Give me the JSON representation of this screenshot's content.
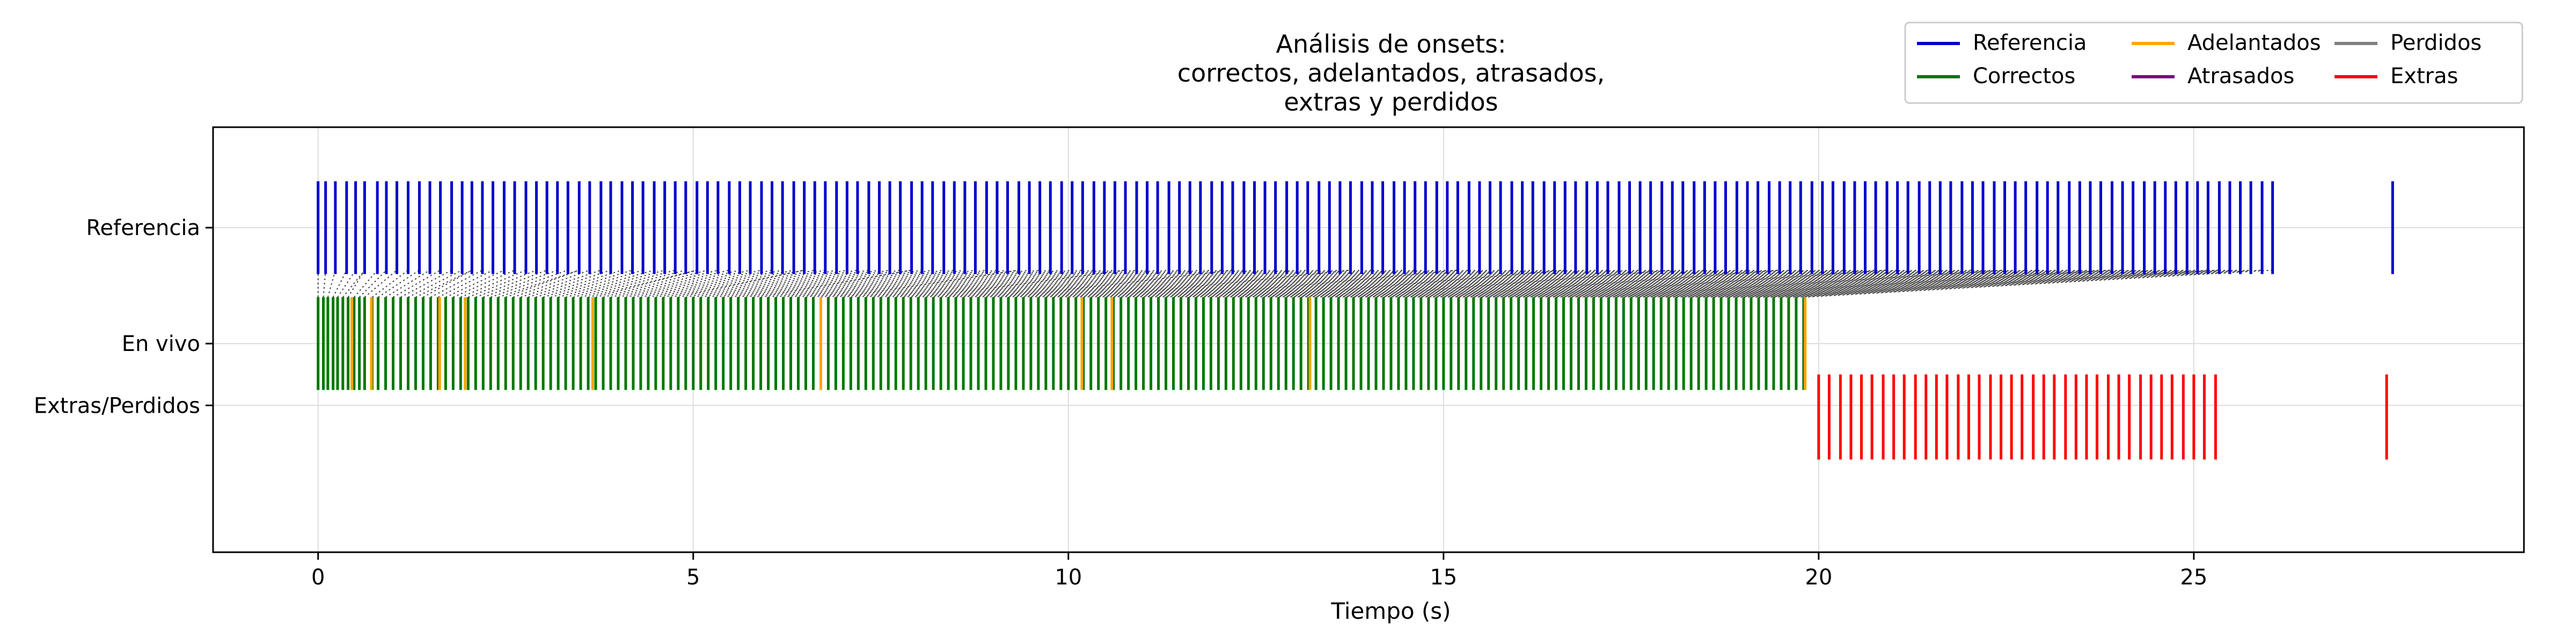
{
  "chart_data": {
    "type": "event-plot",
    "title_lines": [
      "Análisis de onsets:",
      "correctos, adelantados, atrasados,",
      "extras y perdidos"
    ],
    "xlabel": "Tiempo (s)",
    "xlim": [
      -1.4,
      29.4
    ],
    "ylim": [
      -1.5,
      4.0
    ],
    "x_ticks": [
      0,
      5,
      10,
      15,
      20,
      25
    ],
    "y_ticks": [
      {
        "value": 2.7,
        "label": "Referencia"
      },
      {
        "value": 1.2,
        "label": "En vivo"
      },
      {
        "value": 0.4,
        "label": "Extras/Perdidos"
      }
    ],
    "grid": true,
    "legend": {
      "placement": "top-right",
      "entries": [
        {
          "label": "Referencia",
          "color": "#0000cc"
        },
        {
          "label": "Correctos",
          "color": "#007700"
        },
        {
          "label": "Adelantados",
          "color": "#ffa500"
        },
        {
          "label": "Atrasados",
          "color": "#800080"
        },
        {
          "label": "Perdidos",
          "color": "#808080"
        },
        {
          "label": "Extras",
          "color": "#ff0000"
        }
      ]
    },
    "rows": {
      "reference": {
        "y_range": [
          2.1,
          3.3
        ],
        "color": "#0000cc"
      },
      "live": {
        "y_range": [
          0.6,
          1.8
        ]
      },
      "extras": {
        "y_range": [
          -0.3,
          0.8
        ],
        "color": "#ff0000"
      }
    },
    "reference_onsets": [
      0.0,
      0.1,
      0.23,
      0.38,
      0.5,
      0.62,
      0.79,
      0.91,
      1.05,
      1.2,
      1.35,
      1.49,
      1.63,
      1.78,
      1.92,
      2.05,
      2.19,
      2.33,
      2.48,
      2.62,
      2.77,
      2.91,
      3.05,
      3.19,
      3.33,
      3.48,
      3.62,
      3.77,
      3.9,
      4.05,
      4.19,
      4.33,
      4.48,
      4.62,
      4.76,
      4.9,
      5.05,
      5.19,
      5.33,
      5.48,
      5.62,
      5.76,
      5.91,
      6.05,
      6.19,
      6.34,
      6.48,
      6.62,
      6.76,
      6.91,
      7.05,
      7.19,
      7.34,
      7.48,
      7.62,
      7.76,
      7.91,
      8.05,
      8.19,
      8.34,
      8.48,
      8.62,
      8.76,
      8.91,
      9.05,
      9.19,
      9.34,
      9.48,
      9.62,
      9.76,
      9.91,
      10.05,
      10.19,
      10.34,
      10.48,
      10.62,
      10.76,
      10.91,
      11.05,
      11.19,
      11.34,
      11.48,
      11.62,
      11.76,
      11.91,
      12.05,
      12.19,
      12.34,
      12.48,
      12.62,
      12.76,
      12.91,
      13.05,
      13.19,
      13.34,
      13.48,
      13.62,
      13.76,
      13.91,
      14.05,
      14.19,
      14.34,
      14.48,
      14.62,
      14.76,
      14.91,
      15.05,
      15.19,
      15.34,
      15.48,
      15.62,
      15.76,
      15.91,
      16.05,
      16.19,
      16.34,
      16.48,
      16.62,
      16.76,
      16.91,
      17.05,
      17.19,
      17.34,
      17.48,
      17.62,
      17.76,
      17.91,
      18.05,
      18.19,
      18.34,
      18.48,
      18.62,
      18.76,
      18.91,
      19.05,
      19.19,
      19.34,
      19.48,
      19.62,
      19.76,
      19.91,
      20.05,
      20.19,
      20.34,
      20.48,
      20.62,
      20.76,
      20.91,
      21.05,
      21.19,
      21.34,
      21.48,
      21.62,
      21.76,
      21.91,
      22.05,
      22.19,
      22.34,
      22.48,
      22.62,
      22.76,
      22.91,
      23.05,
      23.19,
      23.34,
      23.48,
      23.62,
      23.76,
      23.91,
      24.05,
      24.19,
      24.34,
      24.48,
      24.62,
      24.76,
      24.91,
      25.05,
      25.19,
      25.34,
      25.48,
      25.62,
      25.76,
      25.91,
      26.05,
      27.65
    ],
    "live_onsets": [
      0.0,
      0.07,
      0.13,
      0.2,
      0.26,
      0.33,
      0.4,
      0.48,
      0.55,
      0.62,
      0.72,
      0.8,
      0.9,
      1.0,
      1.1,
      1.2,
      1.3,
      1.4,
      1.5,
      1.6,
      1.7,
      1.8,
      1.9,
      2.0,
      2.1,
      2.2,
      2.3,
      2.4,
      2.5,
      2.6,
      2.7,
      2.8,
      2.9,
      3.0,
      3.1,
      3.2,
      3.3,
      3.4,
      3.5,
      3.6,
      3.7,
      3.8,
      3.9,
      4.0,
      4.1,
      4.2,
      4.3,
      4.4,
      4.5,
      4.6,
      4.7,
      4.8,
      4.9,
      5.0,
      5.1,
      5.2,
      5.3,
      5.4,
      5.5,
      5.6,
      5.7,
      5.8,
      5.9,
      6.0,
      6.1,
      6.2,
      6.3,
      6.4,
      6.5,
      6.6,
      6.7,
      6.8,
      6.9,
      7.0,
      7.1,
      7.2,
      7.3,
      7.4,
      7.5,
      7.6,
      7.7,
      7.8,
      7.9,
      8.0,
      8.1,
      8.2,
      8.3,
      8.4,
      8.5,
      8.6,
      8.7,
      8.8,
      8.9,
      9.0,
      9.1,
      9.2,
      9.3,
      9.4,
      9.5,
      9.6,
      9.7,
      9.8,
      9.9,
      10.0,
      10.1,
      10.2,
      10.3,
      10.4,
      10.5,
      10.6,
      10.7,
      10.8,
      10.9,
      11.0,
      11.1,
      11.2,
      11.3,
      11.4,
      11.5,
      11.6,
      11.7,
      11.8,
      11.9,
      12.0,
      12.1,
      12.2,
      12.3,
      12.4,
      12.5,
      12.6,
      12.7,
      12.8,
      12.9,
      13.0,
      13.1,
      13.2,
      13.3,
      13.4,
      13.5,
      13.6,
      13.7,
      13.8,
      13.9,
      14.0,
      14.1,
      14.2,
      14.3,
      14.4,
      14.5,
      14.6,
      14.7,
      14.8,
      14.9,
      15.0,
      15.1,
      15.2,
      15.3,
      15.4,
      15.5,
      15.6,
      15.7,
      15.8,
      15.9,
      16.0,
      16.1,
      16.2,
      16.3,
      16.4,
      16.5,
      16.6,
      16.7,
      16.8,
      16.9,
      17.0,
      17.1,
      17.2,
      17.3,
      17.4,
      17.5,
      17.6,
      17.7,
      17.8,
      17.9,
      18.0,
      18.1,
      18.2,
      18.3,
      18.4,
      18.5,
      18.6,
      18.7,
      18.8,
      18.9,
      19.0,
      19.1,
      19.2,
      19.3,
      19.4,
      19.5,
      19.6,
      19.7,
      19.8
    ],
    "early_onsets": [
      0.45,
      0.71,
      1.62,
      1.96,
      3.66,
      6.7,
      10.18,
      10.58,
      13.22,
      19.82
    ],
    "extra_onsets": [
      20.0,
      20.14,
      20.29,
      20.43,
      20.57,
      20.71,
      20.86,
      21.0,
      21.14,
      21.29,
      21.43,
      21.57,
      21.71,
      21.86,
      22.0,
      22.14,
      22.29,
      22.43,
      22.57,
      22.71,
      22.86,
      23.0,
      23.14,
      23.29,
      23.43,
      23.57,
      23.71,
      23.86,
      24.0,
      24.14,
      24.29,
      24.43,
      24.57,
      24.71,
      24.86,
      25.0,
      25.14,
      25.29,
      27.57
    ],
    "match_link_color": "#222222"
  }
}
